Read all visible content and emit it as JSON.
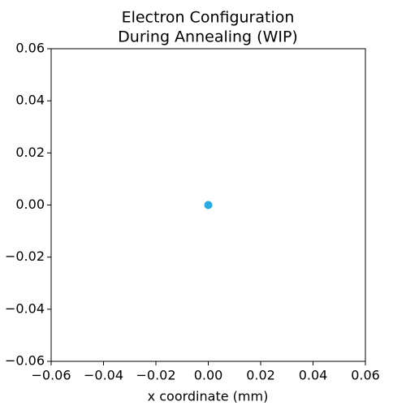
{
  "chart_data": {
    "type": "scatter",
    "title": [
      "Electron Configuration",
      "During Annealing (WIP)"
    ],
    "x_label": "x coordinate (mm)",
    "series": [
      {
        "color": "#29aae1",
        "x": [
          0
        ],
        "values": [
          0
        ]
      }
    ],
    "xlim": [
      -0.06,
      0.06
    ],
    "ylim": [
      -0.06,
      0.06
    ],
    "xticks": [
      {
        "value": -0.06,
        "label": "−0.06"
      },
      {
        "value": -0.04,
        "label": "−0.04"
      },
      {
        "value": -0.02,
        "label": "−0.02"
      },
      {
        "value": 0,
        "label": "0.00"
      },
      0.02,
      0.04,
      0.06
    ],
    "yticks": [
      {
        "value": -0.06,
        "label": "−0.06"
      },
      {
        "value": -0.04,
        "label": "−0.04"
      },
      {
        "value": -0.02,
        "label": "−0.02"
      },
      {
        "value": 0,
        "label": "0.00"
      },
      0.02,
      0.04,
      0.06
    ],
    "grid": false
  }
}
